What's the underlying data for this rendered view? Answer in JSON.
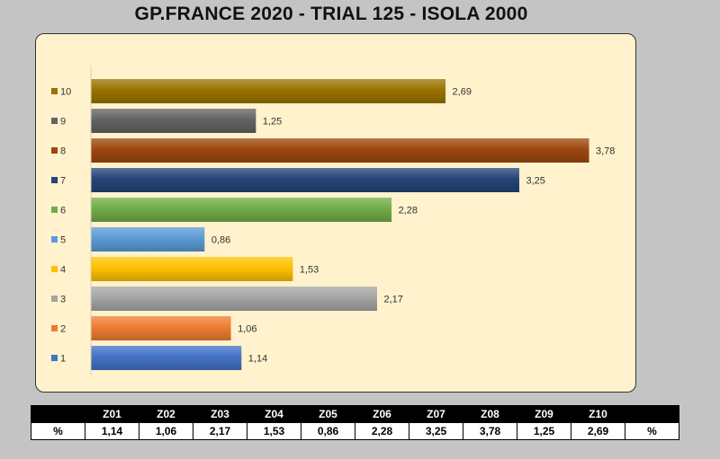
{
  "title": "GP.FRANCE 2020 - TRIAL 125 - ISOLA 2000",
  "chart_data": {
    "type": "bar",
    "orientation": "horizontal",
    "categories": [
      "1",
      "2",
      "3",
      "4",
      "5",
      "6",
      "7",
      "8",
      "9",
      "10"
    ],
    "values": [
      1.14,
      1.06,
      2.17,
      1.53,
      0.86,
      2.28,
      3.25,
      3.78,
      1.25,
      2.69
    ],
    "value_labels": [
      "1,14",
      "1,06",
      "2,17",
      "1,53",
      "0,86",
      "2,28",
      "3,25",
      "3,78",
      "1,25",
      "2,69"
    ],
    "colors": [
      "#4472c4",
      "#ed7d31",
      "#a5a5a5",
      "#ffc000",
      "#5b9bd5",
      "#70ad47",
      "#264478",
      "#9e480e",
      "#636363",
      "#997300"
    ],
    "xlim": [
      0,
      4
    ],
    "grid": false,
    "legend": "left"
  },
  "table": {
    "header": [
      "",
      "Z01",
      "Z02",
      "Z03",
      "Z04",
      "Z05",
      "Z06",
      "Z07",
      "Z08",
      "Z09",
      "Z10",
      ""
    ],
    "row": [
      "%",
      "1,14",
      "1,06",
      "2,17",
      "1,53",
      "0,86",
      "2,28",
      "3,25",
      "3,78",
      "1,25",
      "2,69",
      "%"
    ]
  }
}
